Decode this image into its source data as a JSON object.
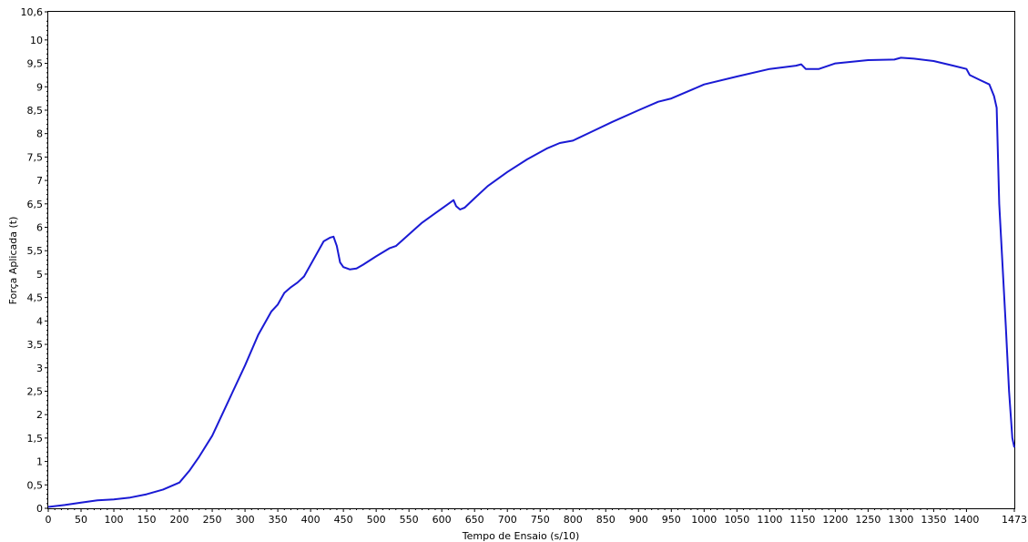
{
  "chart_data": {
    "type": "line",
    "title": "",
    "xlabel": "Tempo de Ensaio (s/10)",
    "ylabel": "Força Aplicada (t)",
    "xlim": [
      0,
      1473
    ],
    "ylim": [
      0,
      10.6
    ],
    "x_ticks": [
      0,
      50,
      100,
      150,
      200,
      250,
      300,
      350,
      400,
      450,
      500,
      550,
      600,
      650,
      700,
      750,
      800,
      850,
      900,
      950,
      1000,
      1050,
      1100,
      1150,
      1200,
      1250,
      1300,
      1350,
      1400,
      1473
    ],
    "x_tick_labels": [
      "0",
      "50",
      "100",
      "150",
      "200",
      "250",
      "300",
      "350",
      "400",
      "450",
      "500",
      "550",
      "600",
      "650",
      "700",
      "750",
      "800",
      "850",
      "900",
      "950",
      "1000",
      "1050",
      "1100",
      "1150",
      "1200",
      "1250",
      "1300",
      "1350",
      "1400",
      "1473"
    ],
    "y_ticks": [
      0,
      0.5,
      1,
      1.5,
      2,
      2.5,
      3,
      3.5,
      4,
      4.5,
      5,
      5.5,
      6,
      6.5,
      7,
      7.5,
      8,
      8.5,
      9,
      9.5,
      10,
      10.6
    ],
    "y_tick_labels": [
      "0",
      "0,5",
      "1",
      "1,5",
      "2",
      "2,5",
      "3",
      "3,5",
      "4",
      "4,5",
      "5",
      "5,5",
      "6",
      "6,5",
      "7",
      "7,5",
      "8",
      "8,5",
      "9",
      "9,5",
      "10",
      "10,6"
    ],
    "grid": false,
    "line_color": "#1a1ad4",
    "series": [
      {
        "x": [
          0,
          25,
          50,
          75,
          100,
          125,
          150,
          175,
          200,
          215,
          230,
          250,
          265,
          280,
          300,
          320,
          340,
          350,
          360,
          370,
          380,
          390,
          400,
          410,
          420,
          430,
          435,
          440,
          445,
          450,
          460,
          470,
          480,
          500,
          520,
          530,
          550,
          570,
          590,
          610,
          618,
          622,
          628,
          635,
          650,
          670,
          700,
          730,
          760,
          780,
          800,
          830,
          860,
          900,
          930,
          950,
          1000,
          1050,
          1100,
          1140,
          1148,
          1155,
          1175,
          1200,
          1250,
          1290,
          1300,
          1320,
          1350,
          1380,
          1400,
          1405,
          1420,
          1435,
          1442,
          1446,
          1450,
          1455,
          1460,
          1465,
          1470,
          1473
        ],
        "y": [
          0.03,
          0.07,
          0.12,
          0.17,
          0.19,
          0.23,
          0.3,
          0.4,
          0.55,
          0.8,
          1.1,
          1.55,
          2.0,
          2.45,
          3.05,
          3.7,
          4.2,
          4.35,
          4.6,
          4.72,
          4.82,
          4.95,
          5.2,
          5.45,
          5.7,
          5.78,
          5.8,
          5.6,
          5.25,
          5.15,
          5.1,
          5.12,
          5.2,
          5.38,
          5.55,
          5.6,
          5.85,
          6.1,
          6.3,
          6.5,
          6.58,
          6.45,
          6.38,
          6.42,
          6.62,
          6.88,
          7.18,
          7.45,
          7.68,
          7.8,
          7.85,
          8.05,
          8.25,
          8.5,
          8.68,
          8.75,
          9.05,
          9.22,
          9.38,
          9.45,
          9.48,
          9.38,
          9.38,
          9.5,
          9.57,
          9.58,
          9.62,
          9.6,
          9.55,
          9.45,
          9.38,
          9.25,
          9.15,
          9.05,
          8.8,
          8.55,
          6.5,
          5.2,
          3.9,
          2.5,
          1.5,
          1.3
        ]
      }
    ]
  }
}
